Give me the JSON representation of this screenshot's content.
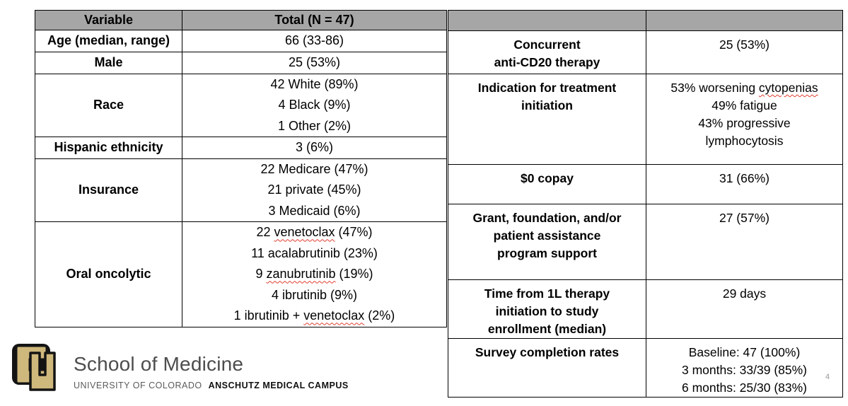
{
  "page_number": "4",
  "colors": {
    "header_gray": "#A6A6A6",
    "squiggle_red": "#E03C2D",
    "logo_gold": "#CFB87C",
    "logo_text_gray": "#4D4D4D"
  },
  "left_table": {
    "headers": [
      "Variable",
      "Total (N = 47)"
    ],
    "rows": [
      {
        "label_lines": [
          "Age (median, range)"
        ],
        "value_lines": [
          [
            {
              "t": "66 (33-86)"
            }
          ]
        ]
      },
      {
        "label_lines": [
          "Male"
        ],
        "value_lines": [
          [
            {
              "t": "25 (53%)"
            }
          ]
        ]
      },
      {
        "label_lines": [
          "Race"
        ],
        "value_lines": [
          [
            {
              "t": "42 White (89%)"
            }
          ],
          [
            {
              "t": "4 Black (9%)"
            }
          ],
          [
            {
              "t": "1 Other (2%)"
            }
          ]
        ]
      },
      {
        "label_lines": [
          "Hispanic ethnicity"
        ],
        "value_lines": [
          [
            {
              "t": "3 (6%)"
            }
          ]
        ]
      },
      {
        "label_lines": [
          "Insurance"
        ],
        "value_lines": [
          [
            {
              "t": "22 Medicare (47%)"
            }
          ],
          [
            {
              "t": "21 private (45%)"
            }
          ],
          [
            {
              "t": "3 Medicaid (6%)"
            }
          ]
        ]
      },
      {
        "label_lines": [
          "Oral oncolytic"
        ],
        "value_lines": [
          [
            {
              "t": "22 "
            },
            {
              "t": "venetoclax",
              "u": true
            },
            {
              "t": " (47%)"
            }
          ],
          [
            {
              "t": "11 acalabrutinib (23%)"
            }
          ],
          [
            {
              "t": "9 "
            },
            {
              "t": "zanubrutinib",
              "u": true
            },
            {
              "t": " (19%)"
            }
          ],
          [
            {
              "t": "4 ibrutinib (9%)"
            }
          ],
          [
            {
              "t": "1 ibrutinib + "
            },
            {
              "t": "venetoclax",
              "u": true
            },
            {
              "t": " (2%)"
            }
          ]
        ]
      }
    ]
  },
  "right_table": {
    "headers": [
      "",
      ""
    ],
    "rows": [
      {
        "label_lines": [
          "Concurrent",
          "anti-CD20 therapy"
        ],
        "value_lines": [
          [
            {
              "t": "25 (53%)"
            }
          ]
        ]
      },
      {
        "label_lines": [
          "Indication for treatment",
          "initiation"
        ],
        "value_lines": [
          [
            {
              "t": "53% worsening "
            },
            {
              "t": "cytopenias",
              "u": true
            }
          ],
          [
            {
              "t": "49% fatigue"
            }
          ],
          [
            {
              "t": "43% progressive"
            }
          ],
          [
            {
              "t": "lymphocytosis"
            }
          ]
        ]
      },
      {
        "label_lines": [
          "$0 copay"
        ],
        "value_lines": [
          [
            {
              "t": "31 (66%)"
            }
          ]
        ]
      },
      {
        "label_lines": [
          "Grant, foundation, and/or",
          "patient assistance",
          "program support"
        ],
        "value_lines": [
          [
            {
              "t": "27 (57%)"
            }
          ]
        ]
      },
      {
        "label_lines": [
          "Time from 1L therapy",
          "initiation to study",
          "enrollment (median)"
        ],
        "value_lines": [
          [
            {
              "t": "29 days"
            }
          ]
        ]
      },
      {
        "label_lines": [
          "Survey completion rates"
        ],
        "value_lines": [
          [
            {
              "t": "Baseline: 47 (100%)"
            }
          ],
          [
            {
              "t": "3 months: 33/39 (85%)"
            }
          ],
          [
            {
              "t": "6 months: 25/30 (83%)"
            }
          ]
        ]
      }
    ]
  },
  "logo": {
    "school": "School of Medicine",
    "university": "UNIVERSITY OF COLORADO",
    "campus": "ANSCHUTZ MEDICAL CAMPUS"
  }
}
